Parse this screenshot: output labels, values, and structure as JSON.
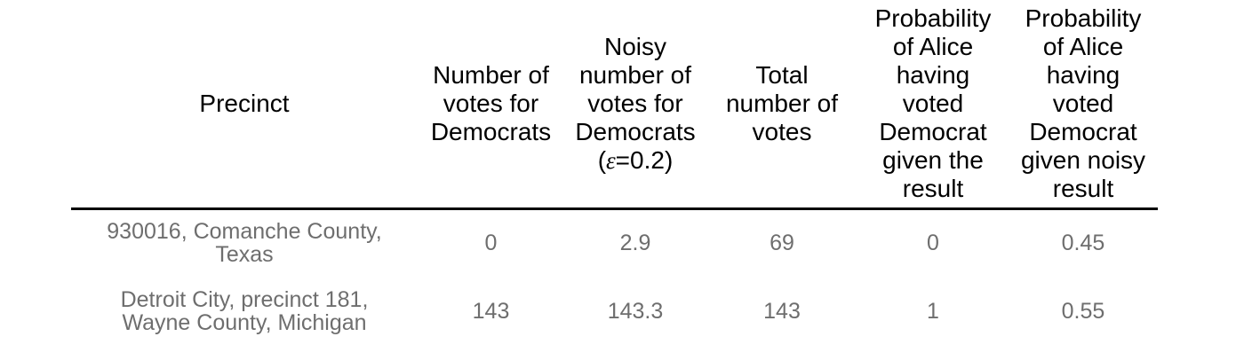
{
  "chart_data": {
    "type": "table",
    "columns": [
      "Precinct",
      "Number of votes for Democrats",
      "Noisy number of votes for Democrats (ε=0.2)",
      "Total number of votes",
      "Probability of Alice having voted Democrat given the result",
      "Probability of Alice having voted Democrat given noisy result"
    ],
    "rows": [
      [
        "930016, Comanche County, Texas",
        0,
        2.9,
        69,
        0,
        0.45
      ],
      [
        "Detroit City, precinct 181, Wayne County, Michigan",
        143,
        143.3,
        143,
        1,
        0.55
      ]
    ],
    "epsilon": 0.2
  },
  "display": {
    "headers": [
      {
        "label": "Precinct"
      },
      {
        "label": "Number of\nvotes for\nDemocrats"
      },
      {
        "label": "Noisy\nnumber of\nvotes for\nDemocrats",
        "epsilon_prefix": "(",
        "epsilon_symbol": "ε",
        "epsilon_suffix": "=0.2)"
      },
      {
        "label": "Total\nnumber of\nvotes"
      },
      {
        "label": "Probability\nof Alice\nhaving\nvoted\nDemocrat\ngiven the\nresult"
      },
      {
        "label": "Probability\nof Alice\nhaving\nvoted\nDemocrat\ngiven noisy\nresult"
      }
    ],
    "row_precincts": [
      "930016, Comanche County,\nTexas",
      "Detroit City, precinct 181,\nWayne County, Michigan"
    ]
  },
  "colors": {
    "background": "#ffffff",
    "header_text": "#000000",
    "body_text": "#6e6e6e",
    "rule": "#000000"
  }
}
